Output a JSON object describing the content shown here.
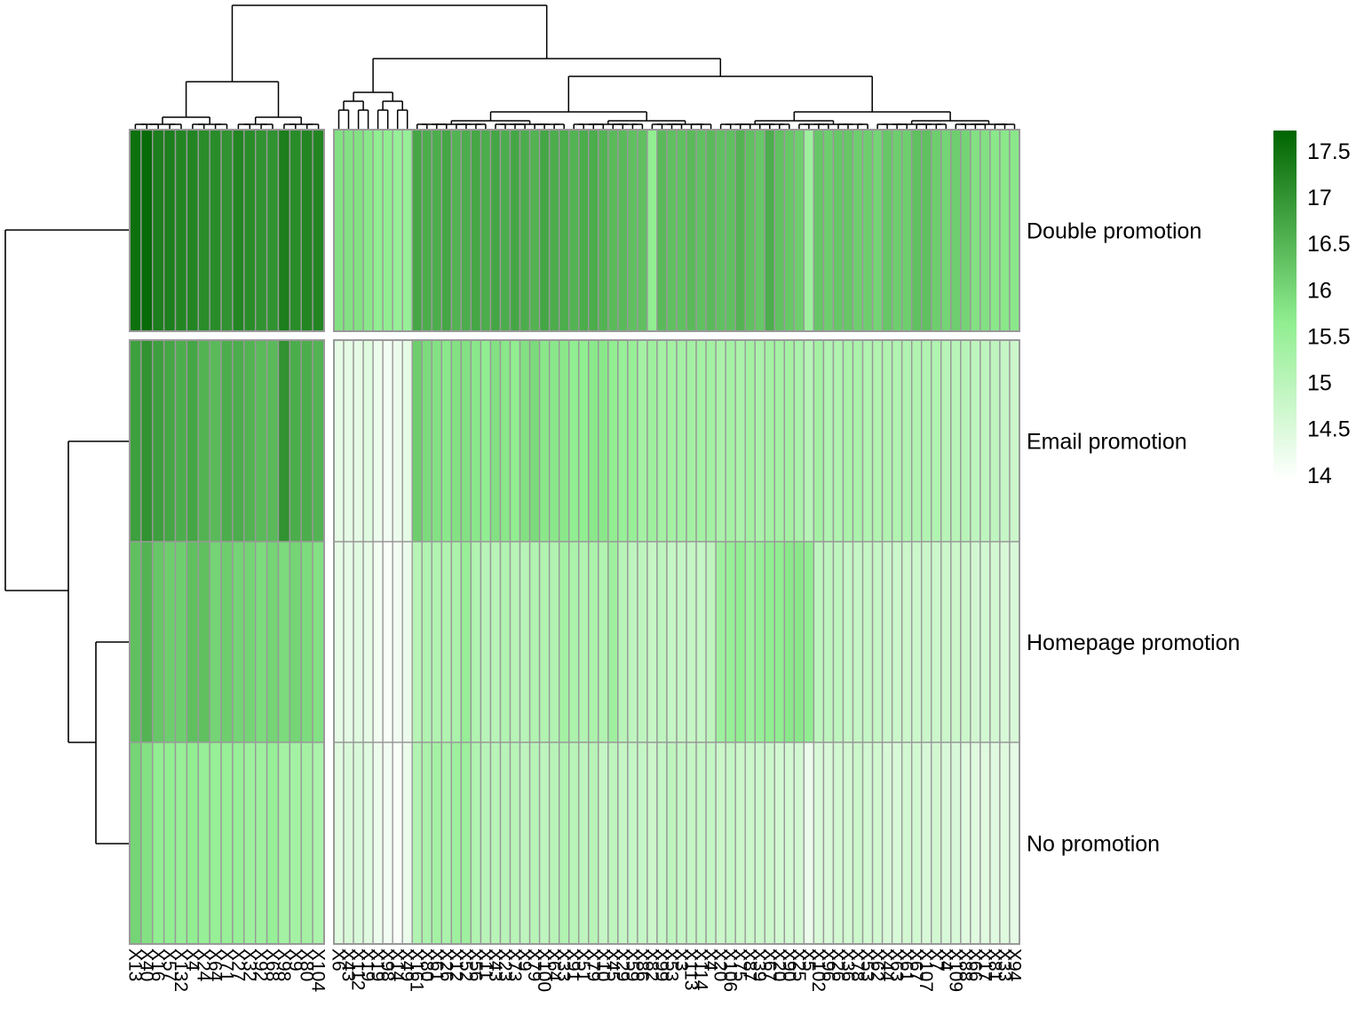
{
  "chart_data": {
    "type": "heatmap",
    "title": "",
    "xlabel": "",
    "ylabel": "",
    "rows": [
      "Double promotion",
      "Email promotion",
      "Homepage promotion",
      "No promotion"
    ],
    "columns": [
      "X13",
      "X40",
      "X16",
      "X57",
      "X132",
      "X4",
      "X24",
      "X64",
      "X71",
      "X27",
      "X32",
      "X92",
      "X68",
      "X98",
      "X9",
      "X80",
      "X104",
      "X6",
      "X43",
      "X112",
      "X19",
      "X19o",
      "X98b",
      "X14",
      "X49",
      "X161",
      "X80b",
      "X61",
      "X26",
      "X12",
      "X52",
      "X56",
      "X11",
      "X43b",
      "X23",
      "X73",
      "X9b",
      "X79",
      "X100",
      "X64b",
      "X33",
      "X91",
      "X51",
      "X79b",
      "X10",
      "X45",
      "X29",
      "X59",
      "X86",
      "X82",
      "X99",
      "X53",
      "X3",
      "X113",
      "X114",
      "X4b",
      "X20",
      "X106",
      "X75",
      "X87",
      "X39",
      "X67",
      "X20b",
      "X90",
      "X25",
      "X5",
      "X102",
      "X96",
      "X26b",
      "X36",
      "X78",
      "X53b",
      "X62",
      "X44",
      "X63",
      "X61b",
      "X67b",
      "X107",
      "X7",
      "X4c",
      "X109",
      "X88",
      "X66",
      "X17",
      "X81",
      "X33b",
      "X94"
    ],
    "column_labels_display": [
      "X13",
      "X40",
      "X16",
      "X57",
      "X132",
      "X4",
      "X24",
      "X64",
      "X71",
      "X27",
      "X32",
      "X92",
      "X68",
      "X98",
      "X9",
      "X80",
      "X104",
      "X6",
      "X43",
      "X112",
      "X19",
      "X19",
      "X98",
      "X14",
      "X49",
      "X161",
      "X80",
      "X61",
      "X26",
      "X12",
      "X52",
      "X56",
      "X11",
      "X43",
      "X23",
      "X73",
      "X9",
      "X79",
      "X100",
      "X64",
      "X33",
      "X91",
      "X51",
      "X79",
      "X10",
      "X45",
      "X29",
      "X59",
      "X86",
      "X82",
      "X99",
      "X53",
      "X3",
      "X113",
      "X114",
      "X4",
      "X20",
      "X106",
      "X75",
      "X87",
      "X39",
      "X67",
      "X20",
      "X90",
      "X25",
      "X5",
      "X102",
      "X96",
      "X26",
      "X36",
      "X78",
      "X53",
      "X62",
      "X44",
      "X63",
      "X61",
      "X67",
      "X107",
      "X7",
      "X4",
      "X109",
      "X88",
      "X66",
      "X17",
      "X81",
      "X33",
      "X94"
    ],
    "column_split": 17,
    "values": [
      [
        17.5,
        17.6,
        17.3,
        17.3,
        17.2,
        17.2,
        17.1,
        17.1,
        17.0,
        17.2,
        17.1,
        17.0,
        17.0,
        17.3,
        17.1,
        17.2,
        17.2,
        15.8,
        15.8,
        15.8,
        15.7,
        15.6,
        15.6,
        15.5,
        15.5,
        16.7,
        16.6,
        16.6,
        16.7,
        16.5,
        16.6,
        16.7,
        16.6,
        16.7,
        16.6,
        16.7,
        16.6,
        16.5,
        16.7,
        16.6,
        16.6,
        16.5,
        16.6,
        16.6,
        16.5,
        16.4,
        16.4,
        16.3,
        16.3,
        15.6,
        16.4,
        16.3,
        16.3,
        16.4,
        16.3,
        16.4,
        16.3,
        16.3,
        16.5,
        16.3,
        16.2,
        16.6,
        16.3,
        16.2,
        16.1,
        15.4,
        16.2,
        16.1,
        16.2,
        16.2,
        16.1,
        16.1,
        16.0,
        16.2,
        16.1,
        16.1,
        16.3,
        16.3,
        16.1,
        16.0,
        16.1,
        16.0,
        15.8,
        15.8,
        15.7,
        15.7,
        15.7
      ],
      [
        16.8,
        17.0,
        16.8,
        16.7,
        16.6,
        16.7,
        16.5,
        16.4,
        16.6,
        16.6,
        16.5,
        16.4,
        16.4,
        17.0,
        16.6,
        16.6,
        16.5,
        14.3,
        14.3,
        14.3,
        14.4,
        14.2,
        14.1,
        14.2,
        14.3,
        16.1,
        15.9,
        15.8,
        15.7,
        15.8,
        15.8,
        15.7,
        15.6,
        15.8,
        15.7,
        15.6,
        15.8,
        15.9,
        15.7,
        15.7,
        15.7,
        15.6,
        15.6,
        15.7,
        15.7,
        15.6,
        15.5,
        15.5,
        15.3,
        15.4,
        15.3,
        15.3,
        15.3,
        15.3,
        15.3,
        15.3,
        15.2,
        15.3,
        15.2,
        15.3,
        15.2,
        15.3,
        15.3,
        15.3,
        15.2,
        15.0,
        15.3,
        15.1,
        15.1,
        15.2,
        15.2,
        15.1,
        15.1,
        15.1,
        15.1,
        15.1,
        15.1,
        15.1,
        15.1,
        15.0,
        15.0,
        15.0,
        14.9,
        14.9,
        14.9,
        14.8,
        14.7
      ],
      [
        16.3,
        16.5,
        16.2,
        16.1,
        16.1,
        16.3,
        16.3,
        16.0,
        16.1,
        16.0,
        16.0,
        15.9,
        16.0,
        15.9,
        16.0,
        15.9,
        15.8,
        14.3,
        14.3,
        14.4,
        14.3,
        14.1,
        14.0,
        14.1,
        14.2,
        15.0,
        15.1,
        15.1,
        15.1,
        15.2,
        15.5,
        15.1,
        15.0,
        15.0,
        15.1,
        15.0,
        15.0,
        15.1,
        15.1,
        15.1,
        15.3,
        15.2,
        15.1,
        15.2,
        15.1,
        15.4,
        15.0,
        14.9,
        14.9,
        14.8,
        14.9,
        14.8,
        14.8,
        14.8,
        14.8,
        14.9,
        15.4,
        15.5,
        15.6,
        15.4,
        15.5,
        15.6,
        15.6,
        15.7,
        15.7,
        15.6,
        14.9,
        14.9,
        14.9,
        14.8,
        14.8,
        14.8,
        14.8,
        14.7,
        14.7,
        14.7,
        14.7,
        14.7,
        14.7,
        14.7,
        14.7,
        14.7,
        14.6,
        14.6,
        14.6,
        14.5,
        14.5
      ],
      [
        16.0,
        15.8,
        15.6,
        15.6,
        15.5,
        15.6,
        15.5,
        15.5,
        15.5,
        15.5,
        15.4,
        15.4,
        15.5,
        15.3,
        15.3,
        15.3,
        15.2,
        14.4,
        14.5,
        14.5,
        14.4,
        14.2,
        14.1,
        14.0,
        14.2,
        15.1,
        15.2,
        15.3,
        15.2,
        15.4,
        15.4,
        15.1,
        15.0,
        15.0,
        15.0,
        15.0,
        14.9,
        15.0,
        14.9,
        15.0,
        15.1,
        15.0,
        14.9,
        15.0,
        14.8,
        14.9,
        14.8,
        14.8,
        14.8,
        14.7,
        14.8,
        14.9,
        14.8,
        14.8,
        14.8,
        14.8,
        14.7,
        14.8,
        14.7,
        14.7,
        14.7,
        14.7,
        14.6,
        14.6,
        14.6,
        14.2,
        14.5,
        14.5,
        14.6,
        14.6,
        14.7,
        14.6,
        14.6,
        14.5,
        14.5,
        14.6,
        14.6,
        14.5,
        14.6,
        14.5,
        14.5,
        14.4,
        14.4,
        14.4,
        14.4,
        14.4,
        14.3
      ]
    ],
    "color_scale": {
      "min": 13.9,
      "max": 17.7,
      "low": "#ffffff",
      "mid": "#90ee90",
      "high": "#006400"
    },
    "legend": {
      "ticks": [
        "17.5",
        "17",
        "16.5",
        "16",
        "15.5",
        "15",
        "14.5",
        "14"
      ],
      "tick_values": [
        17.5,
        17.0,
        16.5,
        16.0,
        15.5,
        15.0,
        14.5,
        14.0
      ],
      "placement": "right"
    },
    "row_dendrogram": {
      "order": [
        "Double promotion",
        "Email promotion",
        "Homepage promotion",
        "No promotion"
      ],
      "merges": [
        [
          3,
          4
        ],
        [
          2,
          "3-4"
        ],
        [
          1,
          "2-3-4"
        ]
      ]
    },
    "column_dendrogram": {
      "groups": 2
    },
    "grid": true,
    "cell_border": "#999999"
  }
}
